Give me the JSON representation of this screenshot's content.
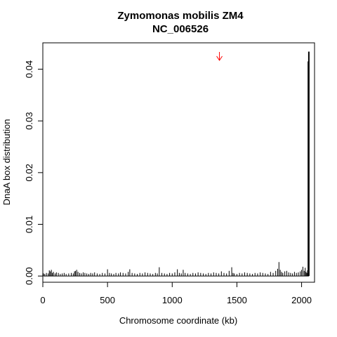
{
  "chart_data": {
    "type": "bar",
    "title": "Zymomonas mobilis ZM4",
    "subtitle": "NC_006526",
    "xlabel": "Chromosome coordinate (kb)",
    "ylabel": "DnaA box distribution",
    "xlim": [
      0,
      2100
    ],
    "ylim": [
      -0.0012,
      0.0451
    ],
    "x_ticks": [
      0,
      500,
      1000,
      1500,
      2000
    ],
    "x_tick_labels": [
      "0",
      "500",
      "1000",
      "1500",
      "2000"
    ],
    "y_ticks": [
      0.0,
      0.01,
      0.02,
      0.03,
      0.04
    ],
    "y_tick_labels": [
      "0.00",
      "0.01",
      "0.02",
      "0.03",
      "0.04"
    ],
    "grid": false,
    "bar_color": "#000000",
    "marker": {
      "type": "arrow",
      "x": 1365,
      "color": "#ff0000"
    },
    "series": [
      {
        "x": [
          5,
          15,
          28,
          42,
          50,
          58,
          66,
          74,
          82,
          95,
          105,
          120,
          135,
          150,
          165,
          180,
          200,
          220,
          235,
          245,
          252,
          262,
          272,
          285,
          298,
          312,
          325,
          340,
          355,
          370,
          385,
          400,
          420,
          440,
          460,
          480,
          500,
          515,
          530,
          548,
          565,
          585,
          600,
          620,
          640,
          660,
          672,
          690,
          710,
          730,
          750,
          770,
          790,
          810,
          830,
          850,
          870,
          885,
          900,
          920,
          940,
          960,
          980,
          1000,
          1020,
          1040,
          1055,
          1070,
          1085,
          1100,
          1120,
          1140,
          1160,
          1180,
          1200,
          1220,
          1240,
          1260,
          1280,
          1300,
          1320,
          1340,
          1360,
          1380,
          1400,
          1420,
          1440,
          1460,
          1470,
          1480,
          1500,
          1520,
          1540,
          1560,
          1580,
          1600,
          1620,
          1640,
          1660,
          1680,
          1700,
          1720,
          1740,
          1760,
          1780,
          1800,
          1815,
          1825,
          1835,
          1845,
          1855,
          1870,
          1885,
          1900,
          1915,
          1930,
          1945,
          1960,
          1975,
          1990,
          2000,
          2010,
          2020,
          2028,
          2034,
          2040,
          2046,
          2052,
          2056
        ],
        "values": [
          0.0005,
          0.0004,
          0.0006,
          0.0005,
          0.0011,
          0.0009,
          0.0012,
          0.0006,
          0.0008,
          0.0005,
          0.0007,
          0.0006,
          0.0004,
          0.0005,
          0.0006,
          0.0004,
          0.0005,
          0.0006,
          0.0005,
          0.0009,
          0.001,
          0.0012,
          0.0008,
          0.0006,
          0.0005,
          0.0007,
          0.0006,
          0.0005,
          0.0004,
          0.0006,
          0.0005,
          0.0007,
          0.0005,
          0.0004,
          0.0006,
          0.0005,
          0.0013,
          0.0006,
          0.0005,
          0.0004,
          0.0006,
          0.0005,
          0.0007,
          0.0006,
          0.0005,
          0.0008,
          0.0013,
          0.0006,
          0.0005,
          0.0004,
          0.0006,
          0.0005,
          0.0007,
          0.0006,
          0.0005,
          0.0004,
          0.0006,
          0.0005,
          0.0017,
          0.0006,
          0.0005,
          0.0004,
          0.0006,
          0.0005,
          0.0007,
          0.0013,
          0.0006,
          0.0005,
          0.0012,
          0.0006,
          0.0005,
          0.0004,
          0.0006,
          0.0005,
          0.0007,
          0.0006,
          0.0005,
          0.0004,
          0.0006,
          0.0005,
          0.0007,
          0.0006,
          0.0005,
          0.0009,
          0.0006,
          0.0005,
          0.001,
          0.0017,
          0.0006,
          0.0005,
          0.0004,
          0.0006,
          0.0005,
          0.0007,
          0.0006,
          0.0005,
          0.0004,
          0.0006,
          0.0005,
          0.0007,
          0.0006,
          0.0005,
          0.0004,
          0.0008,
          0.0006,
          0.001,
          0.0014,
          0.0027,
          0.0012,
          0.0008,
          0.0006,
          0.0009,
          0.001,
          0.0007,
          0.0006,
          0.0005,
          0.0008,
          0.0006,
          0.0007,
          0.0009,
          0.0012,
          0.0018,
          0.001,
          0.0016,
          0.0008,
          0.0006,
          0.0011,
          0.0415,
          0.0434
        ]
      }
    ]
  }
}
